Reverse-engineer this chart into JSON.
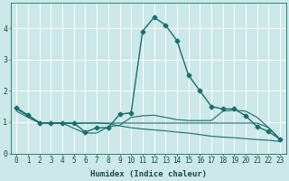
{
  "xlabel": "Humidex (Indice chaleur)",
  "bg_color": "#cce8e8",
  "grid_color": "#ffffff",
  "line_color": "#1a6e6e",
  "xlim": [
    -0.5,
    23.5
  ],
  "ylim": [
    0,
    4.8
  ],
  "yticks": [
    0,
    1,
    2,
    3,
    4
  ],
  "xticks": [
    0,
    1,
    2,
    3,
    4,
    5,
    6,
    7,
    8,
    9,
    10,
    11,
    12,
    13,
    14,
    15,
    16,
    17,
    18,
    19,
    20,
    21,
    22,
    23
  ],
  "xtick_labels": [
    "0",
    "1",
    "2",
    "3",
    "4",
    "5",
    "6",
    "7",
    "8",
    "9",
    "10",
    "11",
    "12",
    "13",
    "14",
    "15",
    "16",
    "17",
    "18",
    "19",
    "20",
    "21",
    "22",
    "23"
  ],
  "series": [
    {
      "x": [
        0,
        1,
        2,
        3,
        4,
        5,
        6,
        7,
        8,
        9,
        10,
        11,
        12,
        13,
        14,
        15,
        16,
        17,
        18,
        19,
        20,
        21,
        22,
        23
      ],
      "y": [
        1.45,
        1.22,
        0.98,
        0.97,
        0.97,
        0.97,
        0.68,
        0.82,
        0.82,
        1.25,
        1.3,
        3.9,
        4.35,
        4.1,
        3.6,
        2.5,
        2.0,
        1.5,
        1.42,
        1.42,
        1.2,
        0.85,
        0.7,
        0.45
      ],
      "marker": "D",
      "marker_size": 2.5,
      "linewidth": 1.0,
      "linestyle": "-"
    },
    {
      "x": [
        0,
        1,
        2,
        3,
        4,
        5,
        6,
        7,
        8,
        9,
        10,
        11,
        12,
        13,
        14,
        15,
        16,
        17,
        18,
        19,
        20,
        21,
        22,
        23
      ],
      "y": [
        1.45,
        1.22,
        0.98,
        0.97,
        0.97,
        0.8,
        0.65,
        0.65,
        0.85,
        0.9,
        1.15,
        1.2,
        1.22,
        1.15,
        1.08,
        1.05,
        1.05,
        1.05,
        1.35,
        1.38,
        1.35,
        1.15,
        0.82,
        0.45
      ],
      "marker": null,
      "linewidth": 0.8,
      "linestyle": "-"
    },
    {
      "x": [
        0,
        1,
        2,
        3,
        4,
        5,
        6,
        7,
        8,
        9,
        10,
        11,
        12,
        13,
        14,
        15,
        16,
        17,
        18,
        19,
        20,
        21,
        22,
        23
      ],
      "y": [
        1.42,
        1.2,
        0.98,
        0.97,
        0.97,
        0.97,
        0.97,
        0.97,
        0.97,
        0.97,
        0.97,
        0.97,
        0.97,
        0.97,
        0.97,
        0.97,
        0.97,
        0.97,
        0.97,
        0.97,
        0.97,
        0.97,
        0.82,
        0.45
      ],
      "marker": null,
      "linewidth": 0.8,
      "linestyle": "-"
    },
    {
      "x": [
        0,
        1,
        2,
        3,
        4,
        5,
        6,
        7,
        8,
        9,
        10,
        11,
        12,
        13,
        14,
        15,
        16,
        17,
        18,
        19,
        20,
        21,
        22,
        23
      ],
      "y": [
        1.35,
        1.15,
        0.97,
        0.97,
        0.97,
        0.95,
        0.97,
        0.97,
        0.95,
        0.88,
        0.82,
        0.78,
        0.75,
        0.72,
        0.68,
        0.65,
        0.6,
        0.55,
        0.52,
        0.5,
        0.47,
        0.44,
        0.42,
        0.38
      ],
      "marker": null,
      "linewidth": 0.8,
      "linestyle": "-"
    }
  ],
  "tick_fontsize": 5.5,
  "xlabel_fontsize": 6.5,
  "tick_color": "#1a6e6e",
  "label_color": "#1a4a4a"
}
